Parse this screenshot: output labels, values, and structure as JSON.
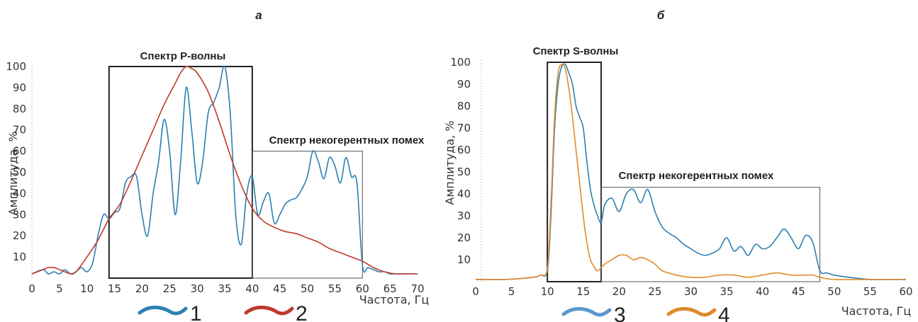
{
  "chart_data": [
    {
      "panel": "а",
      "type": "line",
      "xlabel": "Частота, Гц",
      "ylabel": "Амплитуда, %",
      "xlim": [
        0,
        70
      ],
      "ylim": [
        0,
        100
      ],
      "xticks": [
        0,
        5,
        10,
        15,
        20,
        25,
        30,
        35,
        40,
        45,
        50,
        55,
        60,
        65,
        70
      ],
      "yticks": [
        10,
        20,
        30,
        40,
        50,
        60,
        70,
        80,
        90,
        100
      ],
      "boxes": [
        {
          "label": "Спектр P-волны",
          "x": [
            14,
            40
          ],
          "y": [
            0,
            100
          ]
        },
        {
          "label": "Спектр некогерентных помех",
          "x": [
            40,
            60
          ],
          "y": [
            0,
            60
          ]
        }
      ],
      "series": [
        {
          "name": "1",
          "color": "#2b7fb3",
          "x": [
            0,
            2,
            3,
            4,
            5,
            6,
            7,
            8,
            9,
            10,
            11,
            12,
            13,
            14,
            15,
            16,
            17,
            18,
            19,
            20,
            21,
            22,
            23,
            24,
            25,
            26,
            27,
            28,
            29,
            30,
            31,
            32,
            33,
            34,
            35,
            36,
            37,
            38,
            39,
            40,
            41,
            42,
            43,
            44,
            45,
            46,
            47,
            48,
            49,
            50,
            51,
            52,
            53,
            54,
            55,
            56,
            57,
            58,
            59,
            60,
            61,
            62,
            63,
            64,
            65,
            66,
            67,
            68,
            69,
            70
          ],
          "values": [
            2,
            4,
            2,
            3,
            2,
            4,
            2,
            3,
            5,
            3,
            7,
            20,
            30,
            28,
            31,
            33,
            45,
            48,
            48,
            30,
            20,
            40,
            55,
            75,
            60,
            30,
            55,
            90,
            70,
            45,
            55,
            78,
            83,
            90,
            100,
            78,
            30,
            16,
            40,
            48,
            30,
            36,
            40,
            26,
            30,
            35,
            37,
            38,
            42,
            48,
            60,
            55,
            47,
            57,
            53,
            45,
            57,
            48,
            45,
            6,
            5,
            4,
            3,
            3,
            2,
            2,
            2,
            2,
            2,
            2
          ]
        },
        {
          "name": "2",
          "color": "#c0392b",
          "x": [
            0,
            2,
            3,
            4,
            5,
            6,
            7,
            8,
            10,
            12,
            14,
            16,
            18,
            20,
            22,
            24,
            26,
            27,
            28,
            29,
            30,
            32,
            34,
            36,
            38,
            40,
            42,
            44,
            46,
            48,
            50,
            52,
            54,
            56,
            58,
            60,
            62,
            64,
            66,
            68,
            70
          ],
          "values": [
            2,
            4,
            5,
            5,
            4,
            3,
            2,
            3,
            10,
            18,
            28,
            35,
            46,
            58,
            70,
            82,
            92,
            97,
            100,
            99,
            97,
            88,
            74,
            58,
            44,
            33,
            27,
            24,
            22,
            21,
            19,
            17,
            14,
            12,
            10,
            8,
            5,
            3,
            2,
            2,
            2
          ]
        }
      ],
      "legend": [
        "1",
        "2"
      ]
    },
    {
      "panel": "б",
      "type": "line",
      "xlabel": "Частота, Гц",
      "ylabel": "Амплитуда, %",
      "xlim": [
        0,
        60
      ],
      "ylim": [
        0,
        100
      ],
      "xticks": [
        0,
        5,
        10,
        15,
        20,
        25,
        30,
        35,
        40,
        45,
        50,
        55,
        60
      ],
      "yticks": [
        10,
        20,
        30,
        40,
        50,
        60,
        70,
        80,
        90,
        100
      ],
      "boxes": [
        {
          "label": "Спектр S-волны",
          "x": [
            10,
            17.5
          ],
          "y": [
            0,
            100
          ]
        },
        {
          "label": "Спектр некогерентных помех",
          "x": [
            17.5,
            48
          ],
          "y": [
            0,
            43
          ]
        }
      ],
      "series": [
        {
          "name": "3",
          "color": "#2b7fb3",
          "x": [
            0,
            4,
            8,
            9,
            10,
            10.5,
            11,
            11.5,
            12,
            12.5,
            13,
            13.5,
            14,
            14.5,
            15,
            15.5,
            16,
            16.5,
            17,
            17.5,
            18,
            19,
            20,
            21,
            22,
            23,
            24,
            25,
            26,
            27,
            28,
            29,
            30,
            31,
            32,
            33,
            34,
            35,
            36,
            37,
            38,
            39,
            40,
            41,
            42,
            43,
            44,
            45,
            46,
            47,
            48,
            49,
            50,
            52,
            55,
            58,
            60
          ],
          "values": [
            1,
            1,
            2,
            3,
            5,
            30,
            70,
            90,
            98,
            99,
            95,
            90,
            80,
            75,
            70,
            55,
            42,
            35,
            30,
            27,
            35,
            38,
            32,
            40,
            42,
            36,
            42,
            32,
            25,
            22,
            20,
            17,
            15,
            13,
            12,
            13,
            15,
            20,
            14,
            16,
            12,
            17,
            15,
            16,
            20,
            24,
            20,
            15,
            21,
            18,
            5,
            4,
            3,
            2,
            1,
            1,
            1
          ]
        },
        {
          "name": "4",
          "color": "#e08a2c",
          "x": [
            0,
            4,
            8,
            9,
            10,
            10.5,
            11,
            11.5,
            12,
            12.5,
            13,
            13.5,
            14,
            14.5,
            15,
            15.5,
            16,
            16.5,
            17,
            18,
            19,
            20,
            21,
            22,
            23,
            24,
            25,
            26,
            28,
            30,
            32,
            34,
            36,
            38,
            40,
            42,
            44,
            46,
            47,
            48,
            50,
            55,
            60
          ],
          "values": [
            1,
            1,
            2,
            3,
            6,
            35,
            75,
            95,
            99,
            97,
            88,
            75,
            60,
            45,
            30,
            18,
            10,
            7,
            5,
            8,
            10,
            12,
            12,
            10,
            11,
            10,
            8,
            5,
            3,
            2,
            2,
            3,
            3,
            2,
            3,
            4,
            3,
            3,
            3,
            2,
            1,
            1,
            1
          ]
        }
      ],
      "legend": [
        "3",
        "4"
      ]
    }
  ]
}
